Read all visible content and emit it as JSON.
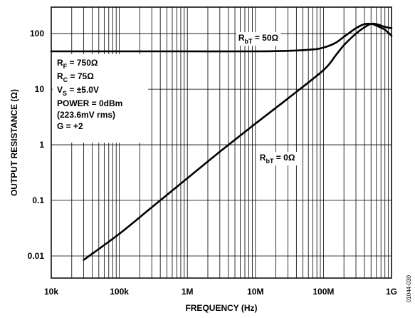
{
  "chart_data": {
    "type": "line",
    "title": "",
    "xlabel": "FREQUENCY (Hz)",
    "ylabel": "OUTPUT RESISTANCE (Ω)",
    "x_scale": "log",
    "y_scale": "log",
    "xlim": [
      10000,
      1000000000
    ],
    "ylim": [
      0.004,
      300
    ],
    "grid": true,
    "x_ticks": [
      {
        "value": 10000,
        "label": "10k"
      },
      {
        "value": 100000,
        "label": "100k"
      },
      {
        "value": 1000000,
        "label": "1M"
      },
      {
        "value": 10000000,
        "label": "10M"
      },
      {
        "value": 100000000,
        "label": "100M"
      },
      {
        "value": 1000000000,
        "label": "1G"
      }
    ],
    "y_ticks": [
      {
        "value": 0.01,
        "label": "0.01"
      },
      {
        "value": 0.1,
        "label": "0.1"
      },
      {
        "value": 1,
        "label": "1"
      },
      {
        "value": 10,
        "label": "10"
      },
      {
        "value": 100,
        "label": "100"
      }
    ],
    "series": [
      {
        "label_main": "R",
        "label_sub": "bT",
        "label_rest": " = 50Ω",
        "x": [
          10000,
          100000,
          1000000,
          10000000,
          30000000,
          70000000,
          100000000,
          150000000,
          200000000,
          300000000,
          400000000,
          500000000,
          600000000,
          700000000,
          800000000,
          1000000000
        ],
        "y": [
          48,
          48,
          48,
          48,
          49,
          52,
          56,
          68,
          88,
          125,
          148,
          150,
          140,
          128,
          118,
          92
        ]
      },
      {
        "label_main": "R",
        "label_sub": "bT",
        "label_rest": " = 0Ω",
        "x": [
          30000,
          100000,
          300000,
          1000000,
          3000000,
          10000000,
          30000000,
          100000000,
          150000000,
          200000000,
          300000000,
          400000000,
          500000000,
          600000000,
          700000000,
          800000000,
          1000000000
        ],
        "y": [
          0.0085,
          0.025,
          0.075,
          0.25,
          0.75,
          2.4,
          6.8,
          22,
          40,
          62,
          100,
          130,
          150,
          148,
          140,
          132,
          125
        ]
      }
    ],
    "annotation_lines": [
      {
        "main": "R",
        "sub": "F",
        "rest": " = 750Ω"
      },
      {
        "main": "R",
        "sub": "C",
        "rest": " = 75Ω"
      },
      {
        "main": "V",
        "sub": "S",
        "rest": " = ±5.0V"
      },
      {
        "main": "POWER = 0dBm",
        "sub": "",
        "rest": ""
      },
      {
        "main": "(223.6mV rms)",
        "sub": "",
        "rest": ""
      },
      {
        "main": "G = +2",
        "sub": "",
        "rest": ""
      }
    ],
    "figure_code": "01044-030"
  }
}
